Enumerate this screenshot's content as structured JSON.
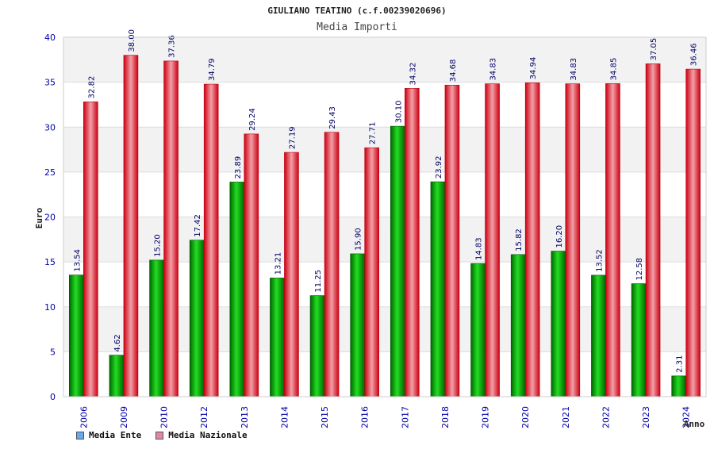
{
  "chart_data": {
    "type": "bar",
    "title": "GIULIANO TEATINO (c.f.00239020696)",
    "subtitle": "Media Importi",
    "xlabel": "Anno",
    "ylabel": "Euro",
    "ylim": [
      0,
      40
    ],
    "yticks": [
      0,
      5,
      10,
      15,
      20,
      25,
      30,
      35,
      40
    ],
    "grid": true,
    "legend_position": "bottom-left",
    "categories": [
      "2006",
      "2009",
      "2010",
      "2012",
      "2013",
      "2014",
      "2015",
      "2016",
      "2017",
      "2018",
      "2019",
      "2020",
      "2021",
      "2022",
      "2023",
      "2024"
    ],
    "series": [
      {
        "name": "Media Ente",
        "color": "#11aa11",
        "legend_color": "#66aaee",
        "values": [
          13.54,
          4.62,
          15.2,
          17.42,
          23.89,
          13.21,
          11.25,
          15.9,
          30.1,
          23.92,
          14.83,
          15.82,
          16.2,
          13.52,
          12.58,
          2.31
        ],
        "labels": [
          "13.54",
          "4.62",
          "15.20",
          "17.42",
          "23.89",
          "13.21",
          "11.25",
          "15.90",
          "30.10",
          "23.92",
          "14.83",
          "15.82",
          "16.20",
          "13.52",
          "12.58",
          "2.31"
        ]
      },
      {
        "name": "Media Nazionale",
        "color": "#ee1122",
        "legend_color": "#dd88aa",
        "values": [
          32.82,
          38.0,
          37.36,
          34.79,
          29.24,
          27.19,
          29.43,
          27.71,
          34.32,
          34.68,
          34.83,
          34.94,
          34.83,
          34.85,
          37.05,
          36.46
        ],
        "labels": [
          "32.82",
          "38.00",
          "37.36",
          "34.79",
          "29.24",
          "27.19",
          "29.43",
          "27.71",
          "34.32",
          "34.68",
          "34.83",
          "34.94",
          "34.83",
          "34.85",
          "37.05",
          "36.46"
        ]
      }
    ]
  }
}
